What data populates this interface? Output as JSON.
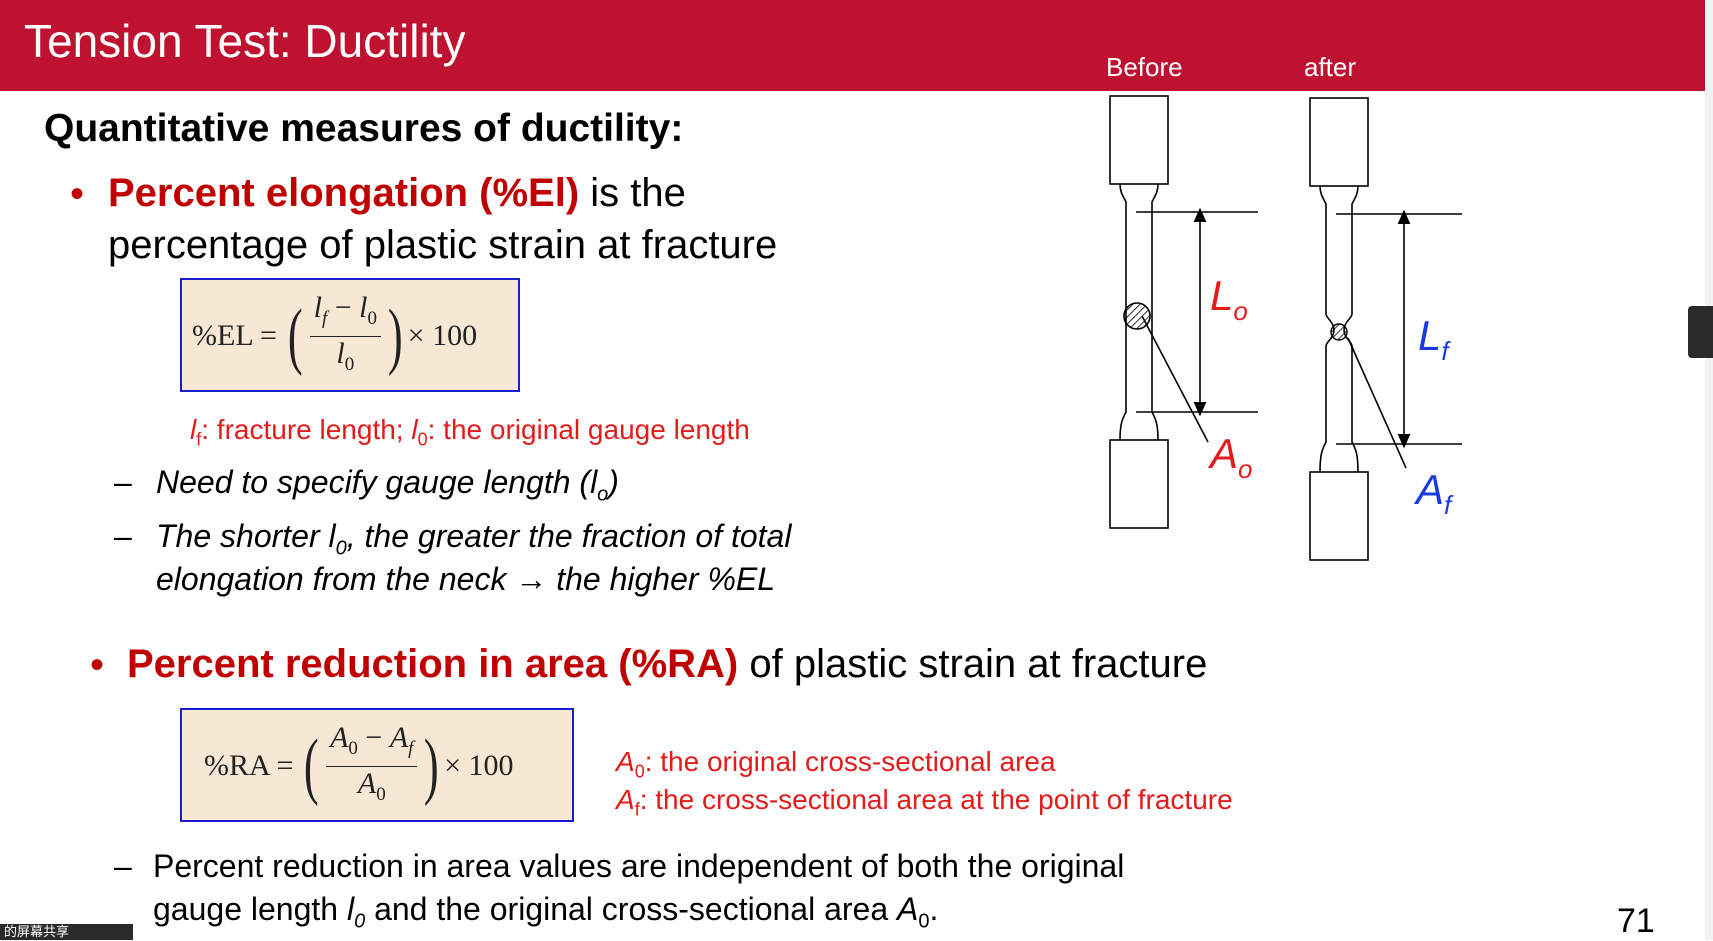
{
  "header": {
    "title": "Tension Test: Ductility",
    "label_before": "Before",
    "label_after": "after",
    "bg_color": "#bf1230"
  },
  "heading": "Quantitative measures of ductility:",
  "elongation": {
    "term": "Percent elongation (%El)",
    "rest1": " is the",
    "rest2": "percentage of plastic strain at fracture",
    "formula": {
      "lhs": "%EL =",
      "num_a": "l",
      "num_a_sub": "f",
      "minus": " − ",
      "num_b": "l",
      "num_b_sub": "0",
      "den": "l",
      "den_sub": "0",
      "mult": "× 100"
    },
    "caption": {
      "v1": "l",
      "v1_sub": "f",
      "t1": ": fracture length; ",
      "v2": "l",
      "v2_sub": "0",
      "t2": ": the original gauge length"
    },
    "sub1": {
      "text": "Need to specify gauge length (l",
      "sub": "o",
      "end": ")"
    },
    "sub2": {
      "t1": "The shorter l",
      "sub": "0",
      "t2": ", the greater the fraction of total",
      "line2": "elongation from the neck → the higher %EL"
    }
  },
  "reduction": {
    "term": "Percent reduction in area (%RA)",
    "rest": " of plastic strain at fracture",
    "formula": {
      "lhs": "%RA =",
      "num_a": "A",
      "num_a_sub": "0",
      "minus": " − ",
      "num_b": "A",
      "num_b_sub": "f",
      "den": "A",
      "den_sub": "0",
      "mult": "× 100"
    },
    "caption1": {
      "v": "A",
      "sub": "0",
      "t": ": the original cross-sectional area"
    },
    "caption2": {
      "v": "A",
      "sub": "f",
      "t": ": the cross-sectional area at the point of fracture"
    },
    "note": {
      "line1": "Percent reduction in area values are independent of both the original",
      "l2a": "gauge length ",
      "l2v": "l",
      "l2sub": "0",
      "l2b": " and the original cross-sectional area ",
      "l2v2": "A",
      "l2sub2": "0",
      "l2c": "."
    }
  },
  "diagram": {
    "before": {
      "L": "L",
      "L_sub": "o",
      "A": "A",
      "A_sub": "o",
      "color": "#e31b1b"
    },
    "after": {
      "L": "L",
      "L_sub": "f",
      "A": "A",
      "A_sub": "f",
      "color": "#1a3adf"
    }
  },
  "bullet_char": "•",
  "dash_char": "–",
  "page_number": "71",
  "footer_tag": "的屏幕共享"
}
